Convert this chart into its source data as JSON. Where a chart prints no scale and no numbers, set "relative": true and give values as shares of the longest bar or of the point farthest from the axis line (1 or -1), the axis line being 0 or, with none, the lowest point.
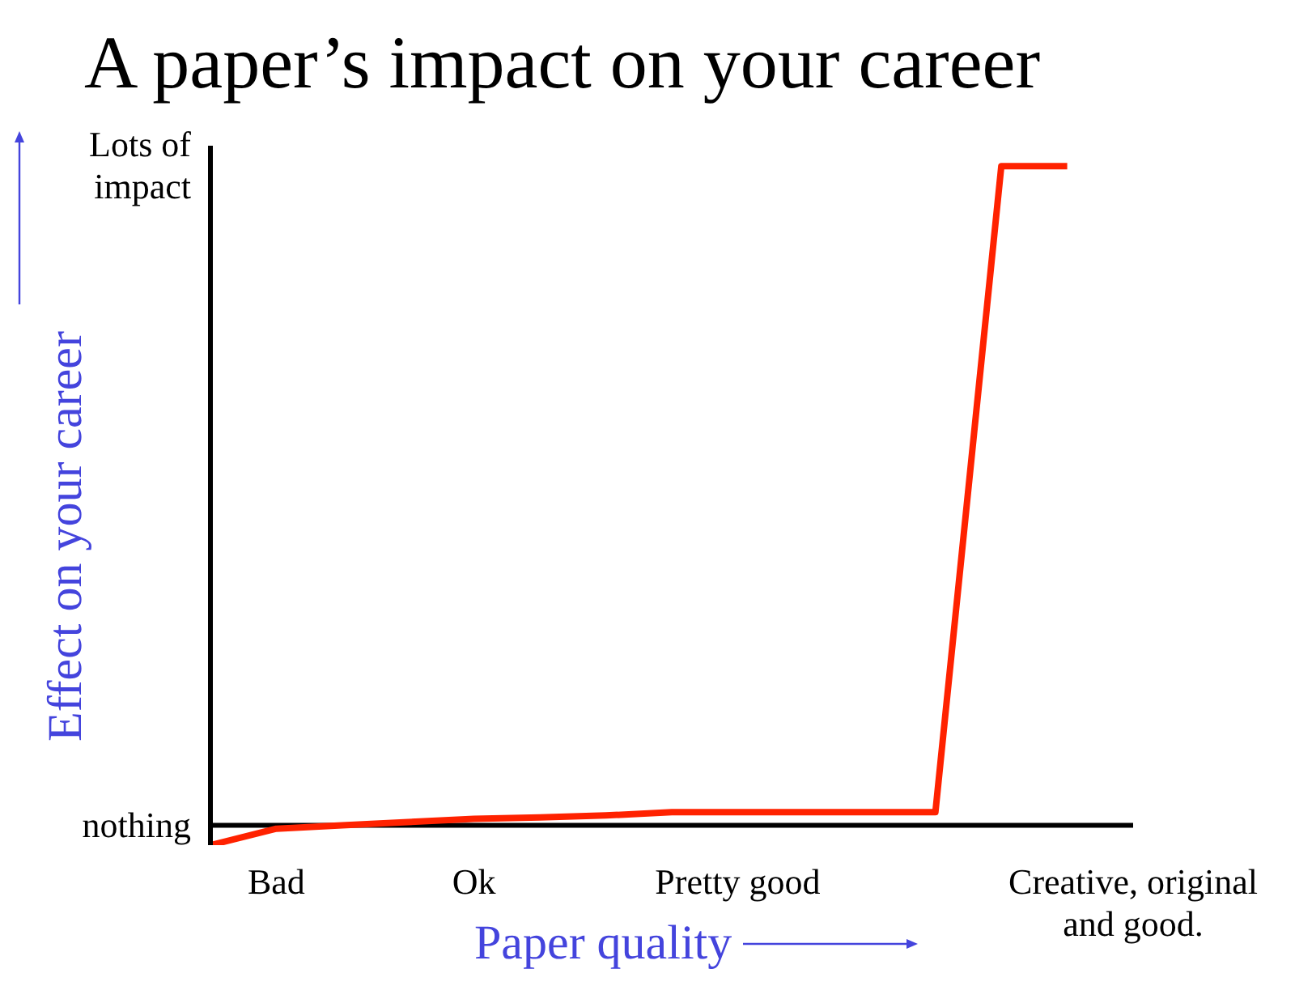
{
  "chart_data": {
    "type": "line",
    "title": "A paper’s impact on your career",
    "xlabel": "Paper quality",
    "ylabel": "Effect on your career",
    "relative": true,
    "categories": [
      null,
      "Bad",
      null,
      null,
      "Ok",
      null,
      null,
      null,
      "Pretty good",
      null,
      null,
      null,
      null,
      null,
      "Creative, original and good."
    ],
    "series": [
      {
        "color": "#ff2200",
        "values": [
          -0.03,
          -0.005,
          0,
          0.005,
          0.01,
          0.012,
          0.015,
          0.02,
          0.02,
          0.02,
          0.02,
          0.02,
          1,
          1,
          null
        ]
      }
    ],
    "annotations": [
      "nothing",
      "Lots of impact"
    ],
    "grid": false,
    "legend": false,
    "marker": "none",
    "line_style": "solid"
  }
}
